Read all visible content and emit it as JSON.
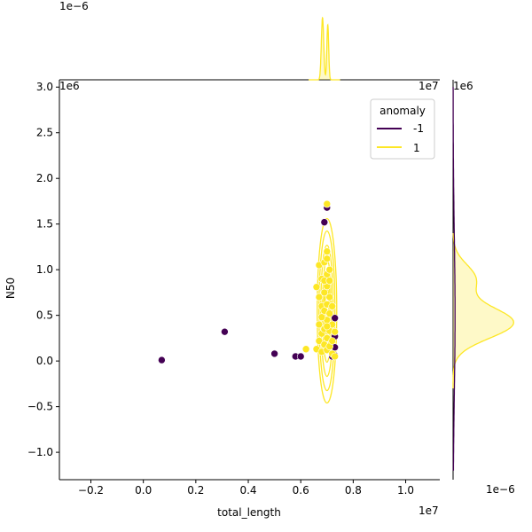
{
  "chart_data": {
    "type": "scatter",
    "kind": "joint-plot with marginal KDE",
    "xlabel": "total_length",
    "ylabel": "N50",
    "x_offset_label": "1e7",
    "y_offset_label": "1e6",
    "top_marginal_offset_label": "1e−6",
    "right_marginal_offset_label": "1e−6",
    "right_marginal_top_label": "1e6",
    "top_marginal_right_label": "1e7",
    "xlim": [
      -0.32,
      1.13
    ],
    "ylim": [
      -1.3,
      3.08
    ],
    "x_ticks": [
      -0.2,
      0.0,
      0.2,
      0.4,
      0.6,
      0.8,
      1.0
    ],
    "x_tick_labels": [
      "−0.2",
      "0.0",
      "0.2",
      "0.4",
      "0.6",
      "0.8",
      "1.0"
    ],
    "y_ticks": [
      -1.0,
      -0.5,
      0.0,
      0.5,
      1.0,
      1.5,
      2.0,
      2.5,
      3.0
    ],
    "y_tick_labels": [
      "−1.0",
      "−0.5",
      "0.0",
      "0.5",
      "1.0",
      "1.5",
      "2.0",
      "2.5",
      "3.0"
    ],
    "legend": {
      "title": "anomaly",
      "position": "top-right",
      "entries": [
        {
          "label": "-1",
          "color": "#440154"
        },
        {
          "label": "1",
          "color": "#fde725"
        }
      ]
    },
    "series": [
      {
        "name": "-1",
        "color": "#440154",
        "points": [
          [
            0.07,
            0.01
          ],
          [
            0.31,
            0.32
          ],
          [
            0.5,
            0.08
          ],
          [
            0.58,
            0.05
          ],
          [
            0.6,
            0.05
          ],
          [
            0.69,
            1.52
          ],
          [
            0.7,
            1.68
          ],
          [
            0.72,
            0.05
          ],
          [
            0.73,
            0.47
          ],
          [
            0.73,
            0.27
          ],
          [
            0.73,
            0.15
          ],
          [
            0.73,
            0.06
          ]
        ]
      },
      {
        "name": "1",
        "color": "#fde725",
        "points": [
          [
            0.62,
            0.13
          ],
          [
            0.66,
            0.81
          ],
          [
            0.66,
            0.13
          ],
          [
            0.67,
            1.05
          ],
          [
            0.67,
            0.7
          ],
          [
            0.67,
            0.4
          ],
          [
            0.67,
            0.22
          ],
          [
            0.68,
            0.9
          ],
          [
            0.68,
            0.6
          ],
          [
            0.68,
            0.3
          ],
          [
            0.68,
            0.1
          ],
          [
            0.69,
            1.08
          ],
          [
            0.69,
            0.75
          ],
          [
            0.69,
            0.55
          ],
          [
            0.69,
            0.35
          ],
          [
            0.69,
            0.18
          ],
          [
            0.7,
            1.72
          ],
          [
            0.7,
            1.2
          ],
          [
            0.7,
            1.12
          ],
          [
            0.7,
            0.95
          ],
          [
            0.7,
            0.82
          ],
          [
            0.7,
            0.62
          ],
          [
            0.7,
            0.45
          ],
          [
            0.7,
            0.25
          ],
          [
            0.7,
            0.12
          ],
          [
            0.71,
            1.0
          ],
          [
            0.71,
            0.7
          ],
          [
            0.71,
            0.52
          ],
          [
            0.71,
            0.33
          ],
          [
            0.71,
            0.16
          ],
          [
            0.72,
            0.6
          ],
          [
            0.72,
            0.4
          ],
          [
            0.72,
            0.22
          ],
          [
            0.72,
            0.08
          ],
          [
            0.73,
            0.32
          ],
          [
            0.73,
            0.05
          ],
          [
            0.68,
            0.48
          ],
          [
            0.69,
            0.88
          ],
          [
            0.71,
            0.88
          ],
          [
            0.7,
            0.38
          ]
        ]
      }
    ]
  }
}
